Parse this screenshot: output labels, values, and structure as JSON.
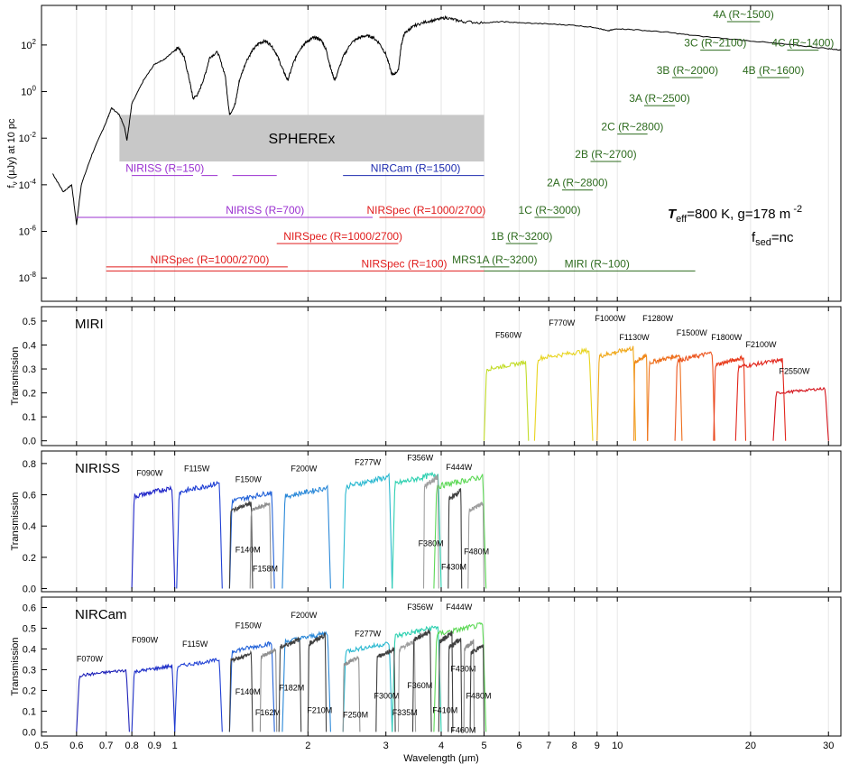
{
  "chart_data": [
    {
      "type": "line",
      "panel": "spectrum",
      "ylabel_main": "f",
      "ylabel_sub": "ν",
      "ylabel_rest": " (μJy) at 10 pc",
      "yscale": "log",
      "xscale": "log",
      "xlim": [
        0.5,
        32
      ],
      "ylim": [
        1e-09,
        5000
      ],
      "yticks": [
        {
          "v": 100,
          "m": "10",
          "e": "2"
        },
        {
          "v": 1,
          "m": "10",
          "e": "0"
        },
        {
          "v": 0.01,
          "m": "10",
          "e": "-2"
        },
        {
          "v": 0.0001,
          "m": "10",
          "e": "-4"
        },
        {
          "v": 1e-06,
          "m": "10",
          "e": "-6"
        },
        {
          "v": 1e-08,
          "m": "10",
          "e": "-8"
        }
      ],
      "spectrum": {
        "x": [
          0.53,
          0.56,
          0.585,
          0.6,
          0.615,
          0.65,
          0.7,
          0.72,
          0.75,
          0.77,
          0.78,
          0.79,
          0.8,
          0.85,
          0.9,
          0.95,
          1.0,
          1.02,
          1.05,
          1.08,
          1.1,
          1.13,
          1.17,
          1.2,
          1.25,
          1.3,
          1.33,
          1.37,
          1.4,
          1.45,
          1.5,
          1.55,
          1.6,
          1.65,
          1.7,
          1.75,
          1.8,
          1.85,
          1.9,
          1.95,
          2.0,
          2.05,
          2.1,
          2.15,
          2.2,
          2.25,
          2.3,
          2.4,
          2.5,
          2.6,
          2.7,
          2.8,
          2.9,
          3.0,
          3.1,
          3.2,
          3.25,
          3.3,
          3.4,
          3.5,
          3.7,
          3.9,
          4.1,
          4.3,
          4.5,
          5.0,
          5.5,
          6.0,
          7.0,
          8.0,
          9.0,
          9.5,
          10.0,
          11.0,
          13.0,
          15.0,
          20.0,
          25.0,
          30.0,
          32.0
        ],
        "y": [
          0.0003,
          5e-05,
          0.0001,
          2e-06,
          0.0001,
          0.002,
          0.05,
          0.2,
          0.1,
          0.03,
          0.008,
          0.05,
          0.3,
          3,
          15,
          25,
          60,
          80,
          30,
          3,
          0.5,
          0.8,
          5,
          30,
          50,
          5,
          0.1,
          0.3,
          3,
          20,
          60,
          120,
          150,
          100,
          40,
          10,
          3,
          15,
          50,
          100,
          150,
          200,
          200,
          150,
          60,
          10,
          3,
          30,
          120,
          200,
          250,
          220,
          120,
          40,
          5,
          8,
          100,
          300,
          500,
          700,
          1000,
          1200,
          1500,
          1200,
          1000,
          900,
          1000,
          900,
          800,
          700,
          550,
          400,
          500,
          450,
          350,
          250,
          150,
          100,
          70,
          60
        ]
      },
      "spherex_band": {
        "label": "SPHEREx",
        "x": [
          0.75,
          5.0
        ],
        "y": [
          0.001,
          0.1
        ]
      },
      "instrument_labels": [
        {
          "text": "NIRISS (R=150)",
          "x": [
            0.8,
            1.05
          ],
          "y": 0.00025,
          "color": "#9b30d0"
        },
        {
          "text": "NIRCam (R=1500)",
          "x": [
            2.4,
            5.0
          ],
          "y": 0.00025,
          "color": "#1f2db0"
        },
        {
          "text": "NIRISS (R=700)",
          "x": [
            0.6,
            2.8
          ],
          "y": 4e-06,
          "color": "#9b30d0"
        },
        {
          "text": "NIRSpec (R=1000/2700)",
          "x": [
            2.9,
            5.0
          ],
          "y": 4e-06,
          "color": "#e01b1b"
        },
        {
          "text": "NIRSpec (R=1000/2700)",
          "x": [
            1.7,
            3.2
          ],
          "y": 3e-07,
          "color": "#e01b1b"
        },
        {
          "text": "NIRSpec (R=1000/2700)",
          "x": [
            0.7,
            1.8
          ],
          "y": 3e-08,
          "color": "#e01b1b"
        },
        {
          "text": "NIRSpec (R=100)",
          "x": [
            0.7,
            5.0
          ],
          "y": 2e-08,
          "color": "#e01b1b"
        },
        {
          "text": "MRS1A (R~3200)",
          "x": [
            4.9,
            5.7
          ],
          "y": 3e-08,
          "color": "#2d6b1e"
        },
        {
          "text": "MIRI (R~100)",
          "x": [
            5.0,
            15.0
          ],
          "y": 2e-08,
          "color": "#2d6b1e"
        },
        {
          "text": "1B (R~3200)",
          "x": [
            5.6,
            6.6
          ],
          "y": 3e-07,
          "color": "#2d6b1e"
        },
        {
          "text": "1C (R~3000)",
          "x": [
            6.5,
            7.6
          ],
          "y": 4e-06,
          "color": "#2d6b1e"
        },
        {
          "text": "2A (R~2800)",
          "x": [
            7.5,
            8.8
          ],
          "y": 6e-05,
          "color": "#2d6b1e"
        },
        {
          "text": "2B (R~2700)",
          "x": [
            8.7,
            10.2
          ],
          "y": 0.001,
          "color": "#2d6b1e"
        },
        {
          "text": "2C (R~2800)",
          "x": [
            10.0,
            11.7
          ],
          "y": 0.015,
          "color": "#2d6b1e"
        },
        {
          "text": "3A (R~2500)",
          "x": [
            11.5,
            13.5
          ],
          "y": 0.25,
          "color": "#2d6b1e"
        },
        {
          "text": "3B (R~2000)",
          "x": [
            13.3,
            15.6
          ],
          "y": 4,
          "color": "#2d6b1e"
        },
        {
          "text": "3C (R~2100)",
          "x": [
            15.4,
            18.0
          ],
          "y": 60,
          "color": "#2d6b1e"
        },
        {
          "text": "4A (R~1500)",
          "x": [
            17.7,
            21.0
          ],
          "y": 1000,
          "color": "#2d6b1e"
        },
        {
          "text": "4B (R~1600)",
          "x": [
            20.7,
            24.5
          ],
          "y": 4,
          "color": "#2d6b1e"
        },
        {
          "text": "4C (R~1400)",
          "x": [
            24.2,
            28.5
          ],
          "y": 60,
          "color": "#2d6b1e"
        }
      ],
      "dash_segments": [
        {
          "x": [
            1.05,
            1.1
          ],
          "y": 0.00025,
          "color": "#9b30d0"
        },
        {
          "x": [
            1.15,
            1.25
          ],
          "y": 0.00025,
          "color": "#9b30d0"
        },
        {
          "x": [
            1.35,
            1.7
          ],
          "y": 0.00025,
          "color": "#9b30d0"
        }
      ],
      "annotation": {
        "teff_T": "T",
        "teff_sub": "eff",
        "teff_rest": "=800 K, g=178 m",
        "teff_exp": " -2",
        "fsed_f": "f",
        "fsed_sub": "sed",
        "fsed_rest": "=nc"
      }
    },
    {
      "type": "line",
      "panel": "MIRI",
      "panel_label": "MIRI",
      "ylabel": "Transmission",
      "ylim": [
        -0.02,
        0.56
      ],
      "yticks": [
        "0.0",
        "0.1",
        "0.2",
        "0.3",
        "0.4",
        "0.5"
      ],
      "filters": [
        {
          "name": "F560W",
          "x": [
            5.0,
            6.3
          ],
          "peak": 0.33,
          "color": "#c2dc28",
          "lx": 5.3,
          "ly": 0.43
        },
        {
          "name": "F770W",
          "x": [
            6.5,
            8.8
          ],
          "peak": 0.38,
          "color": "#e8d41e",
          "lx": 7.0,
          "ly": 0.48
        },
        {
          "name": "F1000W",
          "x": [
            9.0,
            11.0
          ],
          "peak": 0.39,
          "color": "#f0a91d",
          "lx": 8.9,
          "ly": 0.5
        },
        {
          "name": "F1130W",
          "x": [
            10.9,
            11.7
          ],
          "peak": 0.36,
          "color": "#f08a1d",
          "lx": 10.1,
          "ly": 0.42
        },
        {
          "name": "F1280W",
          "x": [
            11.7,
            14.0
          ],
          "peak": 0.36,
          "color": "#ee6f1d",
          "lx": 11.4,
          "ly": 0.5
        },
        {
          "name": "F1500W",
          "x": [
            13.5,
            16.6
          ],
          "peak": 0.37,
          "color": "#ec541d",
          "lx": 13.6,
          "ly": 0.44
        },
        {
          "name": "F1800W",
          "x": [
            16.5,
            19.5
          ],
          "peak": 0.35,
          "color": "#e83c1c",
          "lx": 16.3,
          "ly": 0.42
        },
        {
          "name": "F2100W",
          "x": [
            18.5,
            24.0
          ],
          "peak": 0.34,
          "color": "#e2251b",
          "lx": 19.5,
          "ly": 0.39
        },
        {
          "name": "F2550W",
          "x": [
            22.5,
            30.0
          ],
          "peak": 0.22,
          "color": "#d4121a",
          "lx": 23.2,
          "ly": 0.28
        }
      ]
    },
    {
      "type": "line",
      "panel": "NIRISS",
      "panel_label": "NIRISS",
      "ylabel": "Transmission",
      "ylim": [
        -0.02,
        0.88
      ],
      "yticks": [
        "0.0",
        "0.2",
        "0.4",
        "0.6",
        "0.8"
      ],
      "filters": [
        {
          "name": "F090W",
          "x": [
            0.8,
            1.0
          ],
          "peak": 0.65,
          "color": "#1f25c8",
          "lx": 0.82,
          "ly": 0.72
        },
        {
          "name": "F115W",
          "x": [
            1.01,
            1.28
          ],
          "peak": 0.68,
          "color": "#2040d4",
          "lx": 1.05,
          "ly": 0.75
        },
        {
          "name": "F150W",
          "x": [
            1.33,
            1.68
          ],
          "peak": 0.62,
          "color": "#2262d8",
          "lx": 1.37,
          "ly": 0.68
        },
        {
          "name": "F200W",
          "x": [
            1.75,
            2.25
          ],
          "peak": 0.65,
          "color": "#2a88d8",
          "lx": 1.83,
          "ly": 0.75
        },
        {
          "name": "F277W",
          "x": [
            2.4,
            3.1
          ],
          "peak": 0.72,
          "color": "#2ab8d0",
          "lx": 2.55,
          "ly": 0.79
        },
        {
          "name": "F356W",
          "x": [
            3.1,
            4.0
          ],
          "peak": 0.74,
          "color": "#2dd0b0",
          "lx": 3.35,
          "ly": 0.82
        },
        {
          "name": "F444W",
          "x": [
            3.85,
            5.05
          ],
          "peak": 0.72,
          "color": "#5cd855",
          "lx": 4.1,
          "ly": 0.76
        },
        {
          "name": "F140M",
          "x": [
            1.33,
            1.5
          ],
          "peak": 0.55,
          "color": "#404040",
          "lx": 1.37,
          "ly": 0.23
        },
        {
          "name": "F158M",
          "x": [
            1.48,
            1.65
          ],
          "peak": 0.55,
          "color": "#909090",
          "lx": 1.5,
          "ly": 0.11
        },
        {
          "name": "F380M",
          "x": [
            3.65,
            3.95
          ],
          "peak": 0.72,
          "color": "#a0a0a0",
          "lx": 3.55,
          "ly": 0.27
        },
        {
          "name": "F430M",
          "x": [
            4.15,
            4.45
          ],
          "peak": 0.63,
          "color": "#404040",
          "lx": 4.0,
          "ly": 0.12
        },
        {
          "name": "F480M",
          "x": [
            4.6,
            5.0
          ],
          "peak": 0.55,
          "color": "#a0a0a0",
          "lx": 4.5,
          "ly": 0.22
        }
      ]
    },
    {
      "type": "line",
      "panel": "NIRCam",
      "panel_label": "NIRCam",
      "ylabel": "Transmission",
      "xlabel": "Wavelength (μm)",
      "ylim": [
        -0.02,
        0.65
      ],
      "yticks": [
        "0.0",
        "0.1",
        "0.2",
        "0.3",
        "0.4",
        "0.5",
        "0.6"
      ],
      "xticks": [
        "0.5",
        "0.6",
        "0.7",
        "0.8",
        "0.9",
        "1",
        "2",
        "3",
        "4",
        "5",
        "6",
        "7",
        "8",
        "9",
        "10",
        "20",
        "30"
      ],
      "xtick_values": [
        0.5,
        0.6,
        0.7,
        0.8,
        0.9,
        1,
        2,
        3,
        4,
        5,
        6,
        7,
        8,
        9,
        10,
        20,
        30
      ],
      "filters": [
        {
          "name": "F070W",
          "x": [
            0.6,
            0.79
          ],
          "peak": 0.3,
          "color": "#1f22b8",
          "lx": 0.6,
          "ly": 0.34
        },
        {
          "name": "F090W",
          "x": [
            0.8,
            1.0
          ],
          "peak": 0.32,
          "color": "#1f30c8",
          "lx": 0.8,
          "ly": 0.43
        },
        {
          "name": "F115W",
          "x": [
            1.0,
            1.28
          ],
          "peak": 0.35,
          "color": "#2040d4",
          "lx": 1.04,
          "ly": 0.41
        },
        {
          "name": "F150W",
          "x": [
            1.33,
            1.68
          ],
          "peak": 0.43,
          "color": "#2262d8",
          "lx": 1.37,
          "ly": 0.5
        },
        {
          "name": "F200W",
          "x": [
            1.75,
            2.25
          ],
          "peak": 0.48,
          "color": "#2a88d8",
          "lx": 1.83,
          "ly": 0.55
        },
        {
          "name": "F277W",
          "x": [
            2.4,
            3.1
          ],
          "peak": 0.43,
          "color": "#2ab8d0",
          "lx": 2.55,
          "ly": 0.46
        },
        {
          "name": "F356W",
          "x": [
            3.1,
            4.0
          ],
          "peak": 0.51,
          "color": "#2dd0b0",
          "lx": 3.35,
          "ly": 0.59
        },
        {
          "name": "F444W",
          "x": [
            3.85,
            5.05
          ],
          "peak": 0.52,
          "color": "#5cd855",
          "lx": 4.1,
          "ly": 0.59
        },
        {
          "name": "F140M",
          "x": [
            1.33,
            1.5
          ],
          "peak": 0.38,
          "color": "#404040",
          "lx": 1.37,
          "ly": 0.18
        },
        {
          "name": "F162M",
          "x": [
            1.56,
            1.7
          ],
          "peak": 0.4,
          "color": "#909090",
          "lx": 1.52,
          "ly": 0.08
        },
        {
          "name": "F182M",
          "x": [
            1.72,
            1.93
          ],
          "peak": 0.45,
          "color": "#404040",
          "lx": 1.72,
          "ly": 0.2
        },
        {
          "name": "F210M",
          "x": [
            2.0,
            2.2
          ],
          "peak": 0.47,
          "color": "#404040",
          "lx": 1.99,
          "ly": 0.09
        },
        {
          "name": "F250M",
          "x": [
            2.4,
            2.62
          ],
          "peak": 0.36,
          "color": "#909090",
          "lx": 2.4,
          "ly": 0.07
        },
        {
          "name": "F300M",
          "x": [
            2.85,
            3.15
          ],
          "peak": 0.4,
          "color": "#404040",
          "lx": 2.82,
          "ly": 0.16
        },
        {
          "name": "F335M",
          "x": [
            3.2,
            3.5
          ],
          "peak": 0.44,
          "color": "#a0a0a0",
          "lx": 3.1,
          "ly": 0.08
        },
        {
          "name": "F360M",
          "x": [
            3.45,
            3.8
          ],
          "peak": 0.49,
          "color": "#404040",
          "lx": 3.35,
          "ly": 0.21
        },
        {
          "name": "F410M",
          "x": [
            3.95,
            4.25
          ],
          "peak": 0.48,
          "color": "#404040",
          "lx": 3.82,
          "ly": 0.09
        },
        {
          "name": "F430M",
          "x": [
            4.15,
            4.45
          ],
          "peak": 0.45,
          "color": "#404040",
          "lx": 4.2,
          "ly": 0.29
        },
        {
          "name": "F460M",
          "x": [
            4.5,
            4.75
          ],
          "peak": 0.44,
          "color": "#909090",
          "lx": 4.2,
          "ly": -0.005
        },
        {
          "name": "F480M",
          "x": [
            4.65,
            5.0
          ],
          "peak": 0.42,
          "color": "#404040",
          "lx": 4.55,
          "ly": 0.16
        }
      ]
    }
  ]
}
